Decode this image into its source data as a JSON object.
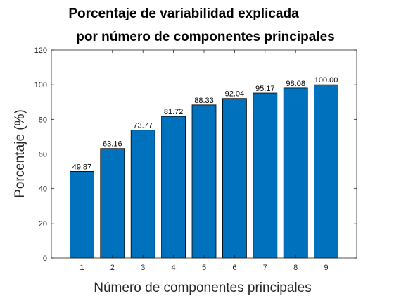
{
  "chart_data": {
    "type": "bar",
    "title_line1": "Porcentaje de variabilidad explicada",
    "title_line2": "por número de componentes principales",
    "xlabel": "Número de componentes principales",
    "ylabel": "Porcentaje (%)",
    "categories": [
      "1",
      "2",
      "3",
      "4",
      "5",
      "6",
      "7",
      "8",
      "9"
    ],
    "values": [
      49.87,
      63.16,
      73.77,
      81.72,
      88.33,
      92.04,
      95.17,
      98.08,
      100.0
    ],
    "data_labels": [
      "49.87",
      "63.16",
      "73.77",
      "81.72",
      "88.33",
      "92.04",
      "95.17",
      "98.08",
      "100.00"
    ],
    "ylim": [
      0,
      120
    ],
    "yticks": [
      0,
      20,
      40,
      60,
      80,
      100,
      120
    ],
    "xlim": [
      0,
      10
    ],
    "grid": false,
    "legend": "none",
    "bar_color": "#0072BD",
    "bar_edge_color": "#000000"
  }
}
